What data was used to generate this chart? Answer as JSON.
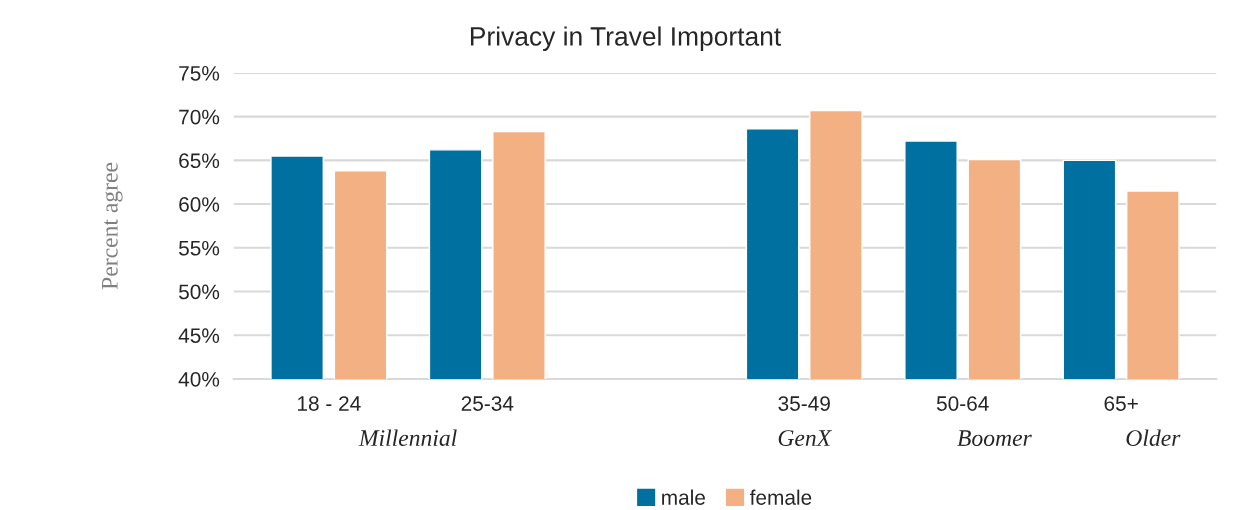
{
  "chart_data": {
    "type": "bar",
    "title": "Privacy in Travel Important",
    "ylabel": "Percent agree",
    "categories": [
      "18 - 24",
      "25-34",
      null,
      "35-49",
      "50-64",
      "65+"
    ],
    "series": [
      {
        "name": "male",
        "color": "#0070a0",
        "values": [
          65.5,
          66.2,
          null,
          68.6,
          67.2,
          65.0
        ]
      },
      {
        "name": "female",
        "color": "#f3b083",
        "values": [
          63.8,
          68.3,
          null,
          70.7,
          65.1,
          61.5
        ]
      }
    ],
    "ylim": [
      40,
      75
    ],
    "yticks": [
      {
        "value": 40,
        "label": "40%"
      },
      {
        "value": 45,
        "label": "45%"
      },
      {
        "value": 50,
        "label": "50%"
      },
      {
        "value": 55,
        "label": "55%"
      },
      {
        "value": 60,
        "label": "60%"
      },
      {
        "value": 65,
        "label": "65%"
      },
      {
        "value": 70,
        "label": "70%"
      },
      {
        "value": 75,
        "label": "75%"
      }
    ],
    "annotations": [
      "Millennial",
      "GenX",
      "Boomer",
      "Older"
    ],
    "grid": "y",
    "legend": "bottom"
  }
}
